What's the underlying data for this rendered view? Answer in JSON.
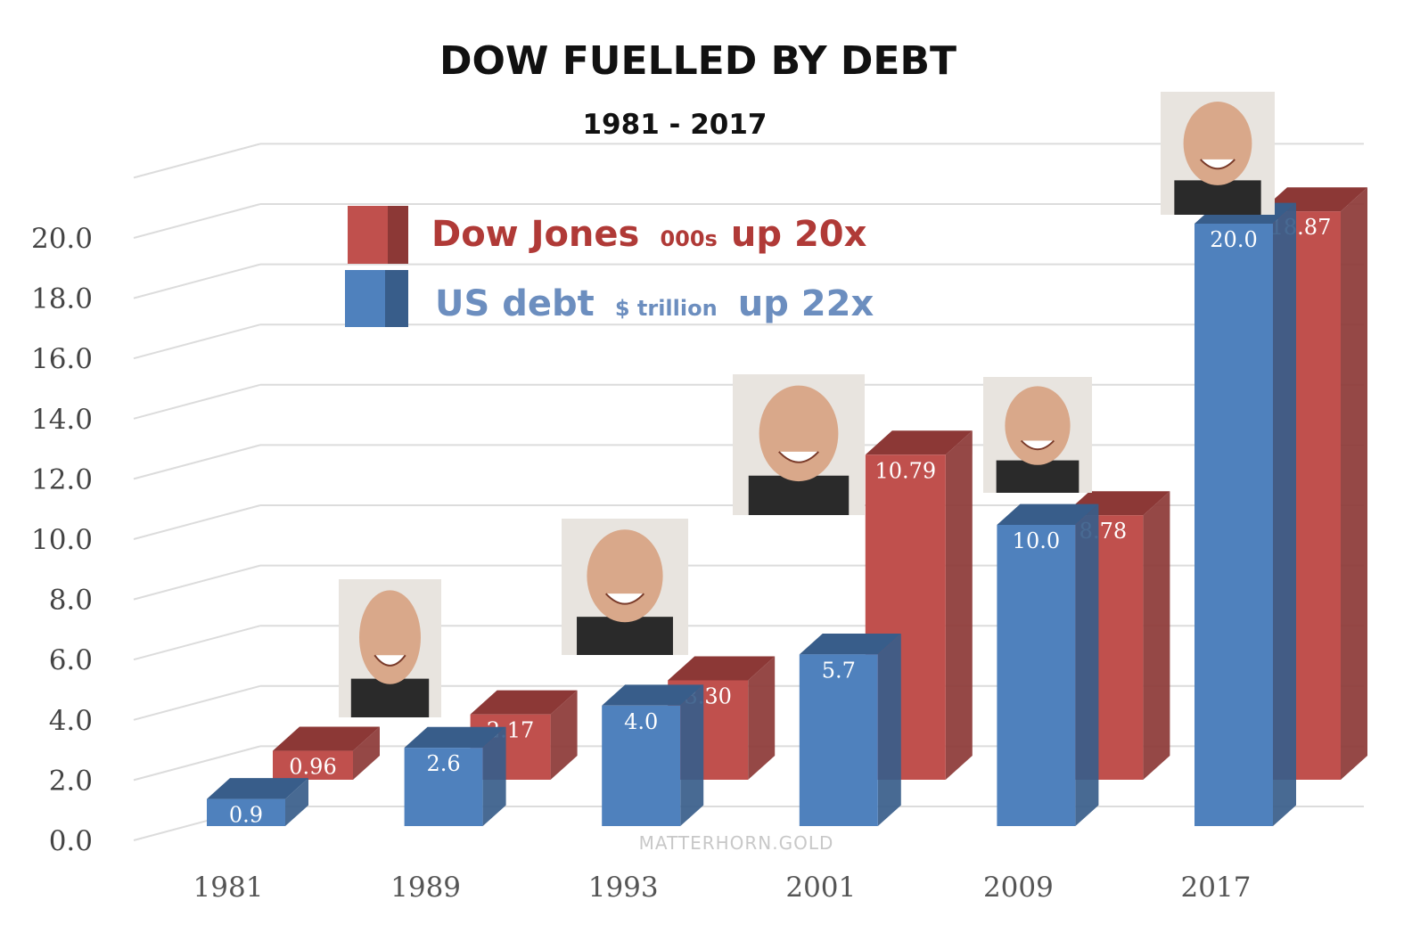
{
  "chart_data": {
    "type": "bar",
    "title": "DOW FUELLED BY DEBT",
    "subtitle": "1981 - 2017",
    "categories": [
      "1981",
      "1989",
      "1993",
      "2001",
      "2009",
      "2017"
    ],
    "series": [
      {
        "name": "US debt",
        "unit": "$ trillion",
        "note": "up 22x",
        "color": "#4f81bd",
        "side_color": "#385d8a",
        "values": [
          0.9,
          2.6,
          4.0,
          5.7,
          10.0,
          20.0
        ],
        "labels": [
          "0.9",
          "2.6",
          "4.0",
          "5.7",
          "10.0",
          "20.0"
        ]
      },
      {
        "name": "Dow Jones",
        "unit": "000s",
        "note": "up 20x",
        "color": "#c0504d",
        "side_color": "#8c3836",
        "values": [
          0.96,
          2.17,
          3.3,
          10.79,
          8.78,
          18.87
        ],
        "labels": [
          "0.96",
          "2.17",
          "3.30",
          "10.79",
          "8.78",
          "18.87"
        ]
      }
    ],
    "yticks": [
      "0.0",
      "2.0",
      "4.0",
      "6.0",
      "8.0",
      "10.0",
      "12.0",
      "14.0",
      "16.0",
      "18.0",
      "20.0"
    ],
    "ylim": [
      0,
      22
    ],
    "grid": true,
    "legend_placement": "top-left",
    "legend": {
      "dow": {
        "name": "Dow Jones",
        "unit": "000s",
        "note": "up 20x",
        "text_color": "#b03a37"
      },
      "debt": {
        "name": "US debt",
        "unit": "$ trillion",
        "note": "up 22x",
        "text_color": "#6c8ebf"
      }
    },
    "watermark": "MATTERHORN.GOLD"
  }
}
